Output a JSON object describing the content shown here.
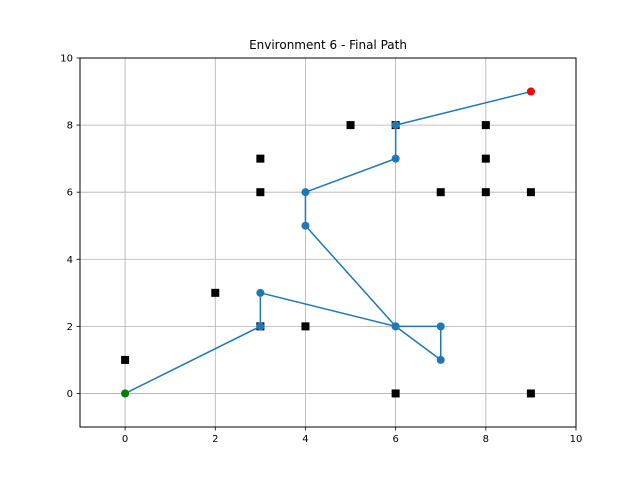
{
  "chart_data": {
    "type": "scatter",
    "title": "Environment 6 - Final Path",
    "xlabel": "",
    "ylabel": "",
    "xlim": [
      -1,
      10
    ],
    "ylim": [
      -1,
      10
    ],
    "xticks": [
      0,
      2,
      4,
      6,
      8,
      10
    ],
    "yticks": [
      0,
      2,
      4,
      6,
      8,
      10
    ],
    "grid": true,
    "colors": {
      "path": "#1f77b4",
      "obstacle": "#000000",
      "start": "#008000",
      "goal": "#ff0000",
      "grid": "#b0b0b0"
    },
    "obstacles": [
      {
        "x": 0,
        "y": 1
      },
      {
        "x": 2,
        "y": 3
      },
      {
        "x": 3,
        "y": 2
      },
      {
        "x": 4,
        "y": 2
      },
      {
        "x": 3,
        "y": 6
      },
      {
        "x": 3,
        "y": 7
      },
      {
        "x": 5,
        "y": 8
      },
      {
        "x": 6,
        "y": 8
      },
      {
        "x": 6,
        "y": 0
      },
      {
        "x": 7,
        "y": 6
      },
      {
        "x": 8,
        "y": 8
      },
      {
        "x": 8,
        "y": 7
      },
      {
        "x": 8,
        "y": 6
      },
      {
        "x": 9,
        "y": 6
      },
      {
        "x": 9,
        "y": 0
      }
    ],
    "path": [
      {
        "x": 0,
        "y": 0
      },
      {
        "x": 3,
        "y": 2
      },
      {
        "x": 3,
        "y": 3
      },
      {
        "x": 6,
        "y": 2
      },
      {
        "x": 7,
        "y": 2
      },
      {
        "x": 7,
        "y": 1
      },
      {
        "x": 6,
        "y": 2
      },
      {
        "x": 4,
        "y": 5
      },
      {
        "x": 4,
        "y": 6
      },
      {
        "x": 6,
        "y": 7
      },
      {
        "x": 6,
        "y": 8
      },
      {
        "x": 9,
        "y": 9
      }
    ],
    "start": {
      "x": 0,
      "y": 0
    },
    "goal": {
      "x": 9,
      "y": 9
    }
  }
}
